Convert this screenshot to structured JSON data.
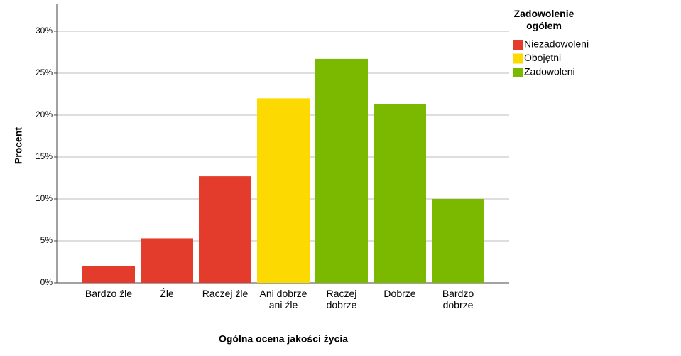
{
  "chart_data": {
    "type": "bar",
    "categories": [
      "Bardzo źle",
      "Źle",
      "Raczej źle",
      "Ani dobrze ani źle",
      "Raczej dobrze",
      "Dobrze",
      "Bardzo dobrze"
    ],
    "series": [
      {
        "name": "Niezadowoleni",
        "color": "#e33b2c",
        "values": [
          2.0,
          5.3,
          12.7,
          null,
          null,
          null,
          null
        ]
      },
      {
        "name": "Obojętni",
        "color": "#fcd900",
        "values": [
          null,
          null,
          null,
          22.0,
          null,
          null,
          null
        ]
      },
      {
        "name": "Zadowoleni",
        "color": "#7bb900",
        "values": [
          null,
          null,
          null,
          null,
          26.7,
          21.3,
          10.0
        ]
      }
    ],
    "legend_title": "Zadowolenie ogółem",
    "xlabel": "Ogólna ocena jakości życia",
    "ylabel": "Procent",
    "ylim": [
      0,
      33.3
    ],
    "yticks": [
      {
        "value": 0,
        "label": "0%"
      },
      {
        "value": 5,
        "label": "5%"
      },
      {
        "value": 10,
        "label": "10%"
      },
      {
        "value": 15,
        "label": "15%"
      },
      {
        "value": 20,
        "label": "20%"
      },
      {
        "value": 25,
        "label": "25%"
      },
      {
        "value": 30,
        "label": "30%"
      }
    ],
    "grid": true,
    "legend": "right"
  }
}
